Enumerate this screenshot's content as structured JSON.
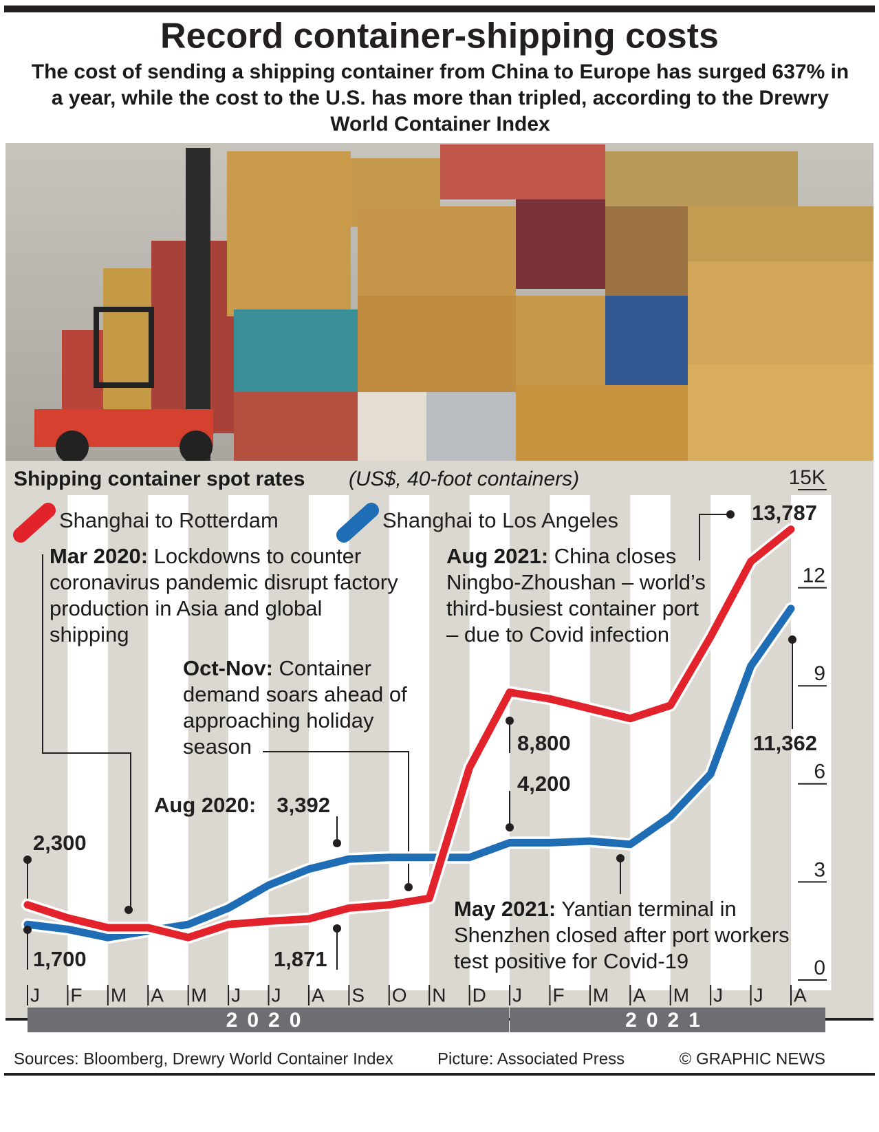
{
  "header": {
    "title": "Record container-shipping costs",
    "subtitle": "The cost of sending a shipping container from China to Europe has surged 637% in a year, while the cost to the U.S. has more than tripled, according to the Drewry World Container Index"
  },
  "chart_data": {
    "type": "line",
    "title": "Shipping container spot rates",
    "unit_note": "(US$, 40-foot containers)",
    "categories": [
      "J",
      "F",
      "M",
      "A",
      "M",
      "J",
      "J",
      "A",
      "S",
      "O",
      "N",
      "D",
      "J",
      "F",
      "M",
      "A",
      "M",
      "J",
      "J",
      "A"
    ],
    "years": [
      "2020",
      "2021"
    ],
    "series": [
      {
        "name": "Shanghai to Rotterdam",
        "color": "#e3232b",
        "values": [
          2300,
          1900,
          1600,
          1600,
          1300,
          1700,
          1800,
          1871,
          2200,
          2300,
          2500,
          6500,
          8800,
          8600,
          8300,
          8000,
          8400,
          10500,
          12800,
          13787
        ],
        "value_labels": [
          "2,300",
          null,
          null,
          null,
          null,
          null,
          null,
          "1,871",
          null,
          null,
          null,
          null,
          "8,800",
          null,
          null,
          null,
          null,
          null,
          null,
          "13,787"
        ]
      },
      {
        "name": "Shanghai to Los Angeles",
        "color": "#1f6db4",
        "values": [
          1700,
          1550,
          1300,
          1500,
          1700,
          2200,
          2900,
          3392,
          3700,
          3750,
          3750,
          3750,
          4200,
          4200,
          4250,
          4150,
          5000,
          6300,
          9600,
          11362
        ],
        "value_labels": [
          "1,700",
          null,
          null,
          null,
          null,
          null,
          null,
          "3,392",
          null,
          null,
          null,
          null,
          "4,200",
          null,
          null,
          null,
          null,
          null,
          null,
          "11,362"
        ]
      }
    ],
    "ylim": [
      0,
      15000
    ],
    "yticks": [
      0,
      {
        "value": 3000,
        "label": "3"
      },
      {
        "value": 6000,
        "label": "6"
      },
      {
        "value": 9000,
        "label": "9"
      },
      {
        "value": 12000,
        "label": "12"
      },
      {
        "value": 15000,
        "label": "15K"
      }
    ],
    "annotations": [
      {
        "date": "Mar 2020:",
        "text": "Lockdowns to counter coronavirus pandemic disrupt factory production in Asia and global shipping"
      },
      {
        "date": "Oct-Nov:",
        "text": "Container demand soars ahead of approaching holiday season"
      },
      {
        "date": "Aug 2021:",
        "text": "China closes Ningbo-Zhoushan – world’s third-busiest container port – due to Covid infection"
      },
      {
        "date": "May 2021:",
        "text": "Yantian terminal in Shenzhen closed after port workers test positive for Covid-19"
      },
      {
        "date": "Aug 2020:"
      }
    ]
  },
  "footer": {
    "sources": "Sources: Bloomberg, Drewry World Container Index",
    "picture": "Picture: Associated Press",
    "credit": "© GRAPHIC NEWS"
  }
}
